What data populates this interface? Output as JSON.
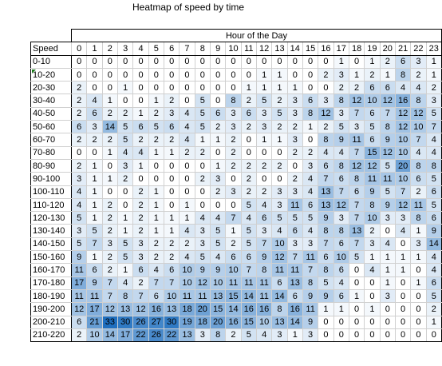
{
  "chart_data": {
    "type": "heatmap",
    "title": "Heatmap of speed by time",
    "xlabel": "Hour of the Day",
    "ylabel": "Speed",
    "x": [
      "0",
      "1",
      "2",
      "3",
      "4",
      "5",
      "6",
      "7",
      "8",
      "9",
      "10",
      "11",
      "12",
      "13",
      "14",
      "15",
      "16",
      "17",
      "18",
      "19",
      "20",
      "21",
      "22",
      "23"
    ],
    "y": [
      "0-10",
      "10-20",
      "20-30",
      "30-40",
      "40-50",
      "50-60",
      "60-70",
      "70-80",
      "80-90",
      "90-100",
      "100-110",
      "110-120",
      "120-130",
      "130-140",
      "140-150",
      "150-160",
      "160-170",
      "170-180",
      "180-190",
      "190-200",
      "200-210",
      "210-220"
    ],
    "values": [
      [
        0,
        0,
        0,
        0,
        0,
        0,
        0,
        0,
        0,
        0,
        0,
        0,
        0,
        0,
        0,
        0,
        0,
        1,
        0,
        1,
        2,
        6,
        3,
        1
      ],
      [
        0,
        0,
        0,
        0,
        0,
        0,
        0,
        0,
        0,
        0,
        0,
        0,
        1,
        1,
        0,
        0,
        2,
        3,
        1,
        2,
        1,
        8,
        2,
        1
      ],
      [
        2,
        0,
        0,
        1,
        0,
        0,
        0,
        0,
        0,
        0,
        0,
        1,
        1,
        1,
        1,
        0,
        0,
        2,
        2,
        6,
        6,
        4,
        4,
        2
      ],
      [
        2,
        4,
        1,
        0,
        0,
        1,
        2,
        0,
        5,
        0,
        8,
        2,
        5,
        2,
        3,
        6,
        3,
        8,
        12,
        10,
        12,
        16,
        8,
        3
      ],
      [
        2,
        6,
        2,
        2,
        1,
        2,
        3,
        4,
        5,
        6,
        3,
        6,
        3,
        5,
        3,
        8,
        12,
        3,
        7,
        6,
        7,
        12,
        12,
        5
      ],
      [
        6,
        3,
        14,
        5,
        6,
        5,
        6,
        4,
        5,
        2,
        3,
        2,
        3,
        2,
        2,
        1,
        2,
        5,
        3,
        5,
        8,
        12,
        10,
        7
      ],
      [
        2,
        2,
        2,
        5,
        2,
        2,
        2,
        4,
        1,
        1,
        2,
        0,
        1,
        1,
        3,
        0,
        8,
        9,
        11,
        6,
        9,
        10,
        7,
        4
      ],
      [
        0,
        0,
        1,
        4,
        4,
        1,
        1,
        2,
        2,
        0,
        2,
        0,
        0,
        0,
        2,
        2,
        4,
        4,
        7,
        15,
        12,
        10,
        4,
        4
      ],
      [
        2,
        1,
        0,
        3,
        1,
        0,
        0,
        0,
        0,
        1,
        2,
        2,
        2,
        2,
        0,
        3,
        6,
        8,
        12,
        12,
        5,
        20,
        8,
        8
      ],
      [
        3,
        1,
        1,
        2,
        0,
        0,
        0,
        0,
        2,
        3,
        0,
        2,
        0,
        0,
        2,
        4,
        7,
        6,
        8,
        11,
        11,
        10,
        6,
        5
      ],
      [
        4,
        1,
        0,
        0,
        2,
        1,
        0,
        0,
        0,
        2,
        3,
        2,
        2,
        3,
        3,
        4,
        13,
        7,
        6,
        9,
        5,
        7,
        2,
        6
      ],
      [
        4,
        1,
        2,
        0,
        2,
        1,
        0,
        1,
        0,
        0,
        0,
        5,
        4,
        3,
        11,
        6,
        13,
        12,
        7,
        8,
        9,
        12,
        11,
        5
      ],
      [
        5,
        1,
        2,
        1,
        2,
        1,
        1,
        1,
        4,
        4,
        7,
        4,
        6,
        5,
        5,
        5,
        9,
        3,
        7,
        10,
        3,
        3,
        8,
        6
      ],
      [
        3,
        5,
        2,
        1,
        2,
        1,
        1,
        4,
        3,
        5,
        1,
        5,
        3,
        4,
        6,
        4,
        8,
        8,
        13,
        2,
        0,
        4,
        1,
        9
      ],
      [
        5,
        7,
        3,
        5,
        3,
        2,
        2,
        2,
        3,
        5,
        2,
        5,
        7,
        10,
        3,
        3,
        7,
        6,
        7,
        3,
        4,
        0,
        3,
        14
      ],
      [
        9,
        1,
        2,
        5,
        3,
        2,
        2,
        4,
        5,
        4,
        6,
        6,
        9,
        12,
        7,
        11,
        6,
        10,
        5,
        1,
        1,
        1,
        1,
        4
      ],
      [
        11,
        6,
        2,
        1,
        6,
        4,
        6,
        10,
        9,
        9,
        10,
        7,
        8,
        11,
        11,
        7,
        8,
        6,
        0,
        4,
        1,
        1,
        0,
        4
      ],
      [
        17,
        9,
        7,
        4,
        2,
        7,
        7,
        10,
        12,
        10,
        11,
        11,
        11,
        6,
        13,
        8,
        5,
        4,
        0,
        0,
        1,
        0,
        1,
        6
      ],
      [
        11,
        11,
        7,
        8,
        7,
        6,
        10,
        11,
        11,
        13,
        15,
        14,
        11,
        14,
        6,
        9,
        9,
        6,
        1,
        0,
        3,
        0,
        0,
        5
      ],
      [
        12,
        17,
        12,
        13,
        12,
        16,
        13,
        18,
        20,
        15,
        14,
        16,
        16,
        8,
        16,
        11,
        1,
        1,
        0,
        1,
        0,
        0,
        0,
        2
      ],
      [
        6,
        21,
        33,
        30,
        26,
        27,
        30,
        19,
        18,
        20,
        16,
        15,
        10,
        13,
        14,
        9,
        0,
        0,
        0,
        0,
        0,
        0,
        0,
        1
      ],
      [
        2,
        10,
        14,
        17,
        22,
        26,
        22,
        13,
        3,
        8,
        2,
        5,
        4,
        3,
        1,
        3,
        0,
        0,
        0,
        0,
        0,
        0,
        0,
        0
      ]
    ],
    "color_scale": {
      "low": "#ffffff",
      "high": "#1f6fbf"
    },
    "grid": true
  }
}
